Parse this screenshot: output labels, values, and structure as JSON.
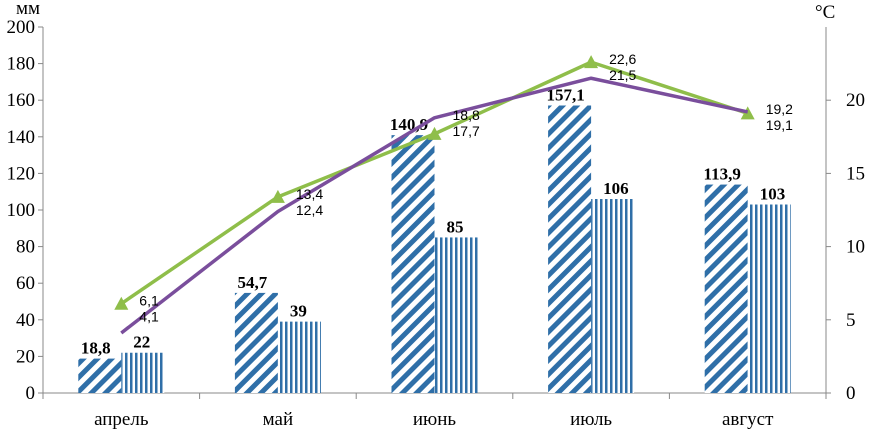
{
  "chart_data": {
    "type": "bar",
    "categories": [
      "апрель",
      "май",
      "июнь",
      "июль",
      "август"
    ],
    "left_unit": "мм",
    "right_unit": "°C",
    "left_ylim": [
      0,
      200
    ],
    "left_ticks": [
      0,
      20,
      40,
      60,
      80,
      100,
      120,
      140,
      160,
      180,
      200
    ],
    "right_ylim": [
      0,
      25
    ],
    "right_ticks": [
      0,
      5,
      10,
      15,
      20
    ],
    "bar_series": [
      {
        "values": [
          18.8,
          54.7,
          140.9,
          157.1,
          113.9
        ],
        "labels": [
          "18,8",
          "54,7",
          "140,9",
          "157,1",
          "113,9"
        ],
        "pattern": "diagonal-stripes",
        "color": "#2f6fa8"
      },
      {
        "values": [
          22,
          39,
          85,
          106,
          103
        ],
        "labels": [
          "22",
          "39",
          "85",
          "106",
          "103"
        ],
        "pattern": "vertical-stripes",
        "color": "#2f6fa8"
      }
    ],
    "line_series": [
      {
        "values": [
          6.1,
          13.4,
          17.7,
          22.6,
          19.1
        ],
        "labels": [
          "6,1",
          "13,4",
          "17,7",
          "22,6",
          "19,1"
        ],
        "color": "#8fbe4a",
        "marker": "triangle"
      },
      {
        "values": [
          4.1,
          12.4,
          18.8,
          21.5,
          19.2
        ],
        "labels": [
          "4,1",
          "12,4",
          "18,8",
          "21,5",
          "19,2"
        ],
        "color": "#7a4e9c",
        "marker": "none"
      }
    ],
    "grid": false,
    "legend": "none"
  }
}
